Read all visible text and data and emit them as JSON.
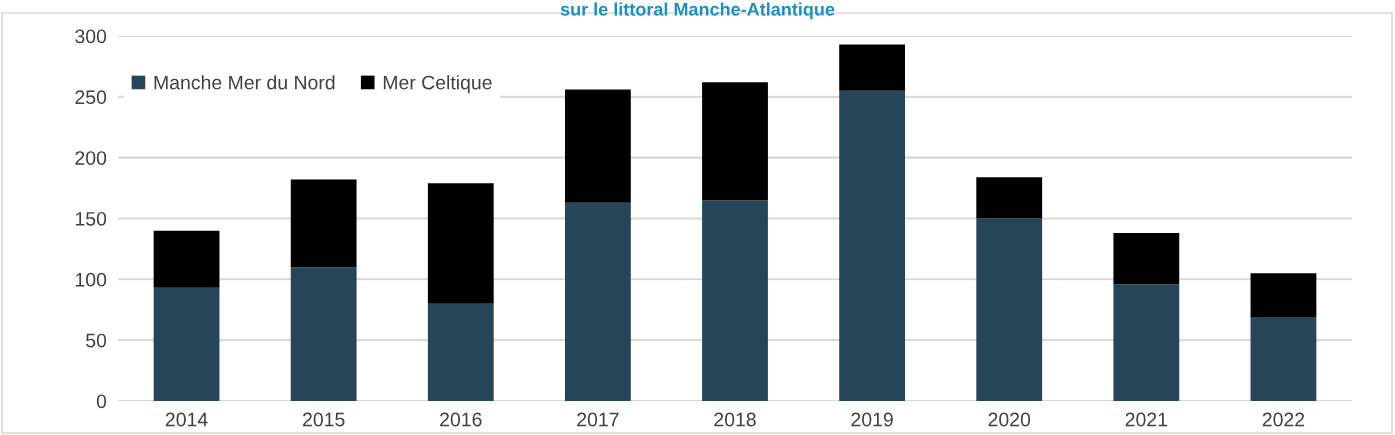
{
  "chart_data": {
    "type": "bar",
    "title": "sur le littoral Manche-Atlantique",
    "stacked": true,
    "categories": [
      "2014",
      "2015",
      "2016",
      "2017",
      "2018",
      "2019",
      "2020",
      "2021",
      "2022"
    ],
    "series": [
      {
        "name": "Manche Mer du Nord",
        "color": "#264559",
        "values": [
          93,
          110,
          80,
          163,
          165,
          255,
          150,
          96,
          69
        ]
      },
      {
        "name": "Mer Celtique",
        "color": "#000000",
        "values": [
          47,
          72,
          99,
          93,
          97,
          38,
          34,
          42,
          36
        ]
      }
    ],
    "ylim": [
      0,
      300
    ],
    "yticks": [
      0,
      50,
      100,
      150,
      200,
      250,
      300
    ],
    "grid": "y",
    "legend": "top left"
  }
}
